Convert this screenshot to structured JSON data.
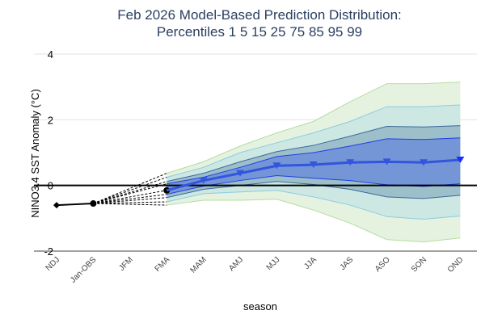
{
  "chart_data": {
    "type": "area",
    "title_line1": "Feb 2026 Model-Based Prediction Distribution:",
    "title_line2": "Percentiles 1 5 15 25 75 85 95 99",
    "xlabel": "season",
    "ylabel": "NINO3.4 SST Anomaly (°C)",
    "ylim": [
      -2,
      4
    ],
    "yticks": [
      "4",
      "2",
      "0",
      "-2"
    ],
    "ytick_values": [
      4,
      2,
      0,
      -2
    ],
    "categories": [
      "NDJ",
      "Jan-OBS",
      "JFM",
      "FMA",
      "MAM",
      "AMJ",
      "MJJ",
      "JJA",
      "JAS",
      "ASO",
      "SON",
      "OND"
    ],
    "grid": true,
    "observed": {
      "categories": [
        "NDJ",
        "Jan-OBS"
      ],
      "values": [
        -0.6,
        -0.55
      ]
    },
    "forecast_categories": [
      "FMA",
      "MAM",
      "AMJ",
      "MJJ",
      "JJA",
      "JAS",
      "ASO",
      "SON",
      "OND"
    ],
    "percentiles": {
      "p1": [
        -0.6,
        -0.45,
        -0.45,
        -0.42,
        -0.75,
        -1.15,
        -1.65,
        -1.72,
        -1.6
      ],
      "p5": [
        -0.5,
        -0.25,
        -0.2,
        -0.15,
        -0.35,
        -0.6,
        -0.95,
        -1.03,
        -0.93
      ],
      "p15": [
        -0.37,
        -0.12,
        0.0,
        0.12,
        0.03,
        -0.12,
        -0.35,
        -0.4,
        -0.3
      ],
      "p25": [
        -0.27,
        -0.02,
        0.15,
        0.3,
        0.22,
        0.15,
        0.02,
        -0.03,
        0.05
      ],
      "p50": [
        -0.15,
        0.15,
        0.37,
        0.6,
        0.63,
        0.7,
        0.72,
        0.7,
        0.78
      ],
      "p75": [
        0.05,
        0.25,
        0.55,
        0.88,
        1.0,
        1.2,
        1.42,
        1.4,
        1.45
      ],
      "p85": [
        0.12,
        0.37,
        0.72,
        1.03,
        1.22,
        1.5,
        1.8,
        1.78,
        1.82
      ],
      "p95": [
        0.25,
        0.55,
        1.0,
        1.3,
        1.6,
        1.95,
        2.4,
        2.4,
        2.45
      ],
      "p99": [
        0.37,
        0.72,
        1.2,
        1.6,
        1.95,
        2.55,
        3.1,
        3.1,
        3.15
      ]
    },
    "colors": {
      "band_1_99": "#e6f2e0",
      "line_1_99": "#b5dca0",
      "band_5_95": "#cde8e3",
      "line_5_95": "#8ccbe0",
      "band_15_85": "#9dbfca",
      "line_15_85": "#3b6a9a",
      "band_25_75": "#7496d6",
      "line_25_75": "#1f3fe8",
      "median": "#3355dd",
      "observed": "#000000"
    }
  }
}
